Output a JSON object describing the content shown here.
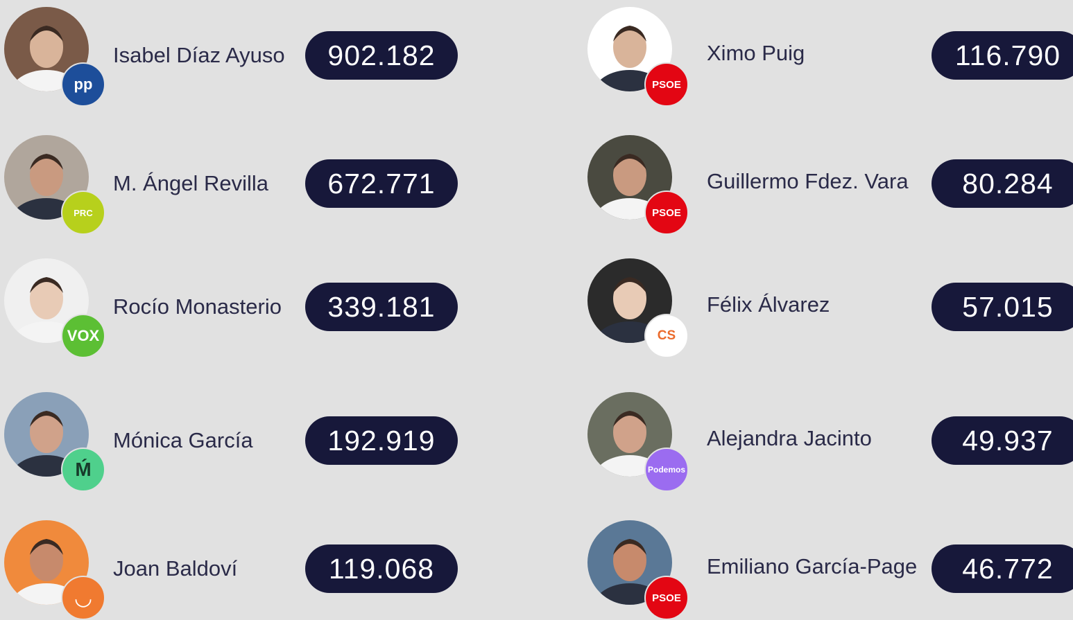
{
  "candidates": [
    {
      "name": "Isabel Díaz Ayuso",
      "votes": "902.182",
      "party": "pp"
    },
    {
      "name": "M. Ángel Revilla",
      "votes": "672.771",
      "party": "PRC"
    },
    {
      "name": "Rocío Monasterio",
      "votes": "339.181",
      "party": "VOX"
    },
    {
      "name": "Mónica García",
      "votes": "192.919",
      "party": "Ḿ"
    },
    {
      "name": "Joan Baldoví",
      "votes": "119.068",
      "party": "◡"
    },
    {
      "name": "Ximo Puig",
      "votes": "116.790",
      "party": "PSOE"
    },
    {
      "name": "Guillermo Fdez. Vara",
      "votes": "80.284",
      "party": "PSOE"
    },
    {
      "name": "Félix Álvarez",
      "votes": "57.015",
      "party": "CS"
    },
    {
      "name": "Alejandra Jacinto",
      "votes": "49.937",
      "party": "Podemos"
    },
    {
      "name": "Emiliano García-Page",
      "votes": "46.772",
      "party": "PSOE"
    }
  ]
}
